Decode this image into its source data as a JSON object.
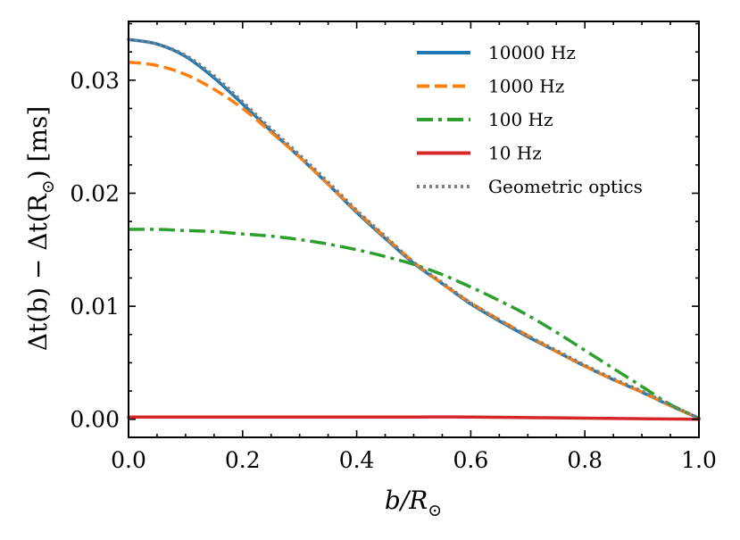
{
  "chart_data": {
    "type": "line",
    "title": "",
    "xlabel": "b/R_⊙",
    "xlabel_main": "b/R",
    "xlabel_sub": "⊙",
    "ylabel": "Δt(b) − Δt(R_⊙) [ms]",
    "ylabel_main": "Δt(b) − Δt(R",
    "ylabel_sub": "⊙",
    "ylabel_end": ") [ms]",
    "xlim": [
      0.0,
      1.0
    ],
    "ylim": [
      -0.0016,
      0.0352
    ],
    "xticks": [
      0.0,
      0.2,
      0.4,
      0.6,
      0.8,
      1.0
    ],
    "xtick_labels": [
      "0.0",
      "0.2",
      "0.4",
      "0.6",
      "0.8",
      "1.0"
    ],
    "yticks": [
      0.0,
      0.01,
      0.02,
      0.03
    ],
    "ytick_labels": [
      "0.00",
      "0.01",
      "0.02",
      "0.03"
    ],
    "grid": false,
    "legend_position": "top-right",
    "series": [
      {
        "name": "10000 Hz",
        "color": "#1f77b4",
        "dash": "solid",
        "x": [
          0.0,
          0.05,
          0.1,
          0.15,
          0.2,
          0.25,
          0.3,
          0.35,
          0.4,
          0.45,
          0.5,
          0.55,
          0.6,
          0.65,
          0.7,
          0.75,
          0.8,
          0.85,
          0.9,
          0.95,
          1.0
        ],
        "y": [
          0.0336,
          0.0332,
          0.0321,
          0.0302,
          0.0279,
          0.0255,
          0.0232,
          0.0208,
          0.0183,
          0.016,
          0.0138,
          0.012,
          0.0102,
          0.0087,
          0.0073,
          0.006,
          0.0047,
          0.0035,
          0.0024,
          0.0012,
          0.0001
        ]
      },
      {
        "name": "1000 Hz",
        "color": "#ff7f0e",
        "dash": "dashed",
        "x": [
          0.0,
          0.05,
          0.1,
          0.15,
          0.2,
          0.25,
          0.3,
          0.35,
          0.4,
          0.45,
          0.5,
          0.55,
          0.6,
          0.65,
          0.7,
          0.75,
          0.8,
          0.85,
          0.9,
          0.95,
          1.0
        ],
        "y": [
          0.0316,
          0.0313,
          0.0305,
          0.0292,
          0.0275,
          0.0254,
          0.0232,
          0.0208,
          0.0184,
          0.0161,
          0.0139,
          0.012,
          0.0103,
          0.0088,
          0.0074,
          0.006,
          0.0047,
          0.0035,
          0.0024,
          0.0012,
          0.0001
        ]
      },
      {
        "name": "100 Hz",
        "color": "#2ca02c",
        "dash": "dashdot",
        "x": [
          0.0,
          0.05,
          0.1,
          0.15,
          0.2,
          0.25,
          0.3,
          0.35,
          0.4,
          0.45,
          0.5,
          0.55,
          0.6,
          0.65,
          0.7,
          0.75,
          0.8,
          0.85,
          0.9,
          0.95,
          1.0
        ],
        "y": [
          0.0168,
          0.0168,
          0.0167,
          0.0166,
          0.0164,
          0.0162,
          0.0159,
          0.0155,
          0.015,
          0.0144,
          0.0137,
          0.0128,
          0.0117,
          0.0105,
          0.0092,
          0.0077,
          0.0061,
          0.0045,
          0.0029,
          0.0013,
          0.0001
        ]
      },
      {
        "name": "10 Hz",
        "color": "#d62728",
        "dash": "solid",
        "x": [
          0.0,
          0.1,
          0.2,
          0.3,
          0.4,
          0.5,
          0.6,
          0.7,
          0.8,
          0.9,
          1.0
        ],
        "y": [
          0.0002,
          0.0002,
          0.0002,
          0.0002,
          0.0002,
          0.0002,
          0.0002,
          0.00015,
          0.0001,
          5e-05,
          0.0
        ]
      },
      {
        "name": "Geometric optics",
        "color": "#7f7f7f",
        "dash": "dotted",
        "x": [
          0.0,
          0.05,
          0.1,
          0.15,
          0.2,
          0.25,
          0.3,
          0.35,
          0.4,
          0.45,
          0.5,
          0.55,
          0.6,
          0.65,
          0.7,
          0.75,
          0.8,
          0.85,
          0.9,
          0.95,
          1.0
        ],
        "y": [
          0.0336,
          0.0332,
          0.0322,
          0.0304,
          0.0281,
          0.0257,
          0.0234,
          0.021,
          0.0185,
          0.0162,
          0.0139,
          0.0121,
          0.0103,
          0.0088,
          0.0074,
          0.0061,
          0.0048,
          0.0036,
          0.0025,
          0.0013,
          0.0001
        ]
      }
    ]
  }
}
